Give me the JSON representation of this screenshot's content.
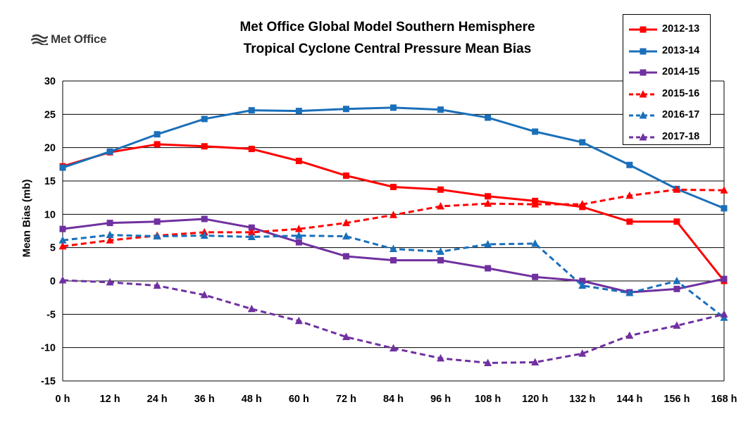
{
  "logo": {
    "text": "Met Office"
  },
  "chart_data": {
    "type": "line",
    "title_line1": "Met Office Global Model Southern Hemisphere",
    "title_line2": "Tropical Cyclone Central Pressure Mean Bias",
    "ylabel": "Mean Bias (mb)",
    "xlabel": "",
    "categories": [
      "0 h",
      "12 h",
      "24 h",
      "36 h",
      "48 h",
      "60 h",
      "72 h",
      "84 h",
      "96 h",
      "108 h",
      "120 h",
      "132 h",
      "144 h",
      "156 h",
      "168 h"
    ],
    "ylim": [
      -15,
      30
    ],
    "yticks": [
      -15,
      -10,
      -5,
      0,
      5,
      10,
      15,
      20,
      25,
      30
    ],
    "grid": true,
    "legend_position": "top-right",
    "series": [
      {
        "name": "2012-13",
        "color": "#ff0000",
        "dashed": false,
        "marker": "square",
        "values": [
          17.2,
          19.3,
          20.5,
          20.2,
          19.8,
          18.0,
          15.8,
          14.1,
          13.7,
          12.7,
          12.0,
          11.1,
          8.9,
          8.9,
          0.0
        ]
      },
      {
        "name": "2013-14",
        "color": "#1a6fba",
        "dashed": false,
        "marker": "square",
        "values": [
          17.0,
          19.4,
          22.0,
          24.3,
          25.6,
          25.5,
          25.8,
          26.0,
          25.7,
          24.5,
          22.4,
          20.8,
          17.4,
          13.8,
          10.9
        ]
      },
      {
        "name": "2014-15",
        "color": "#7030a0",
        "dashed": false,
        "marker": "square",
        "values": [
          7.8,
          8.7,
          8.9,
          9.3,
          8.0,
          5.8,
          3.7,
          3.1,
          3.1,
          1.9,
          0.6,
          0.0,
          -1.7,
          -1.2,
          0.3
        ]
      },
      {
        "name": "2015-16",
        "color": "#ff0000",
        "dashed": true,
        "marker": "triangle",
        "values": [
          5.2,
          6.1,
          6.8,
          7.3,
          7.3,
          7.8,
          8.7,
          9.9,
          11.2,
          11.6,
          11.5,
          11.5,
          12.8,
          13.7,
          13.6
        ]
      },
      {
        "name": "2016-17",
        "color": "#1a6fba",
        "dashed": true,
        "marker": "triangle",
        "values": [
          6.1,
          6.9,
          6.7,
          6.8,
          6.6,
          6.8,
          6.7,
          4.8,
          4.4,
          5.5,
          5.6,
          -0.7,
          -1.8,
          0.0,
          -5.5
        ]
      },
      {
        "name": "2017-18",
        "color": "#7030a0",
        "dashed": true,
        "marker": "triangle",
        "values": [
          0.1,
          -0.2,
          -0.7,
          -2.1,
          -4.2,
          -6.0,
          -8.4,
          -10.1,
          -11.6,
          -12.3,
          -12.2,
          -10.9,
          -8.2,
          -6.7,
          -5.0
        ]
      }
    ]
  }
}
